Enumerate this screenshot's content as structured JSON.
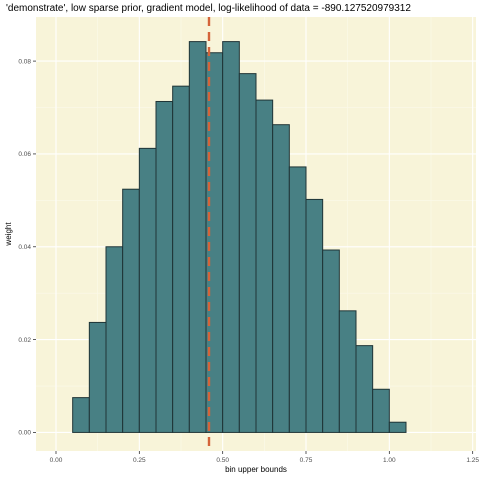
{
  "chart_data": {
    "type": "bar",
    "title": "'demonstrate', low sparse prior, gradient model, log-likelihood of data = -890.127520979312",
    "xlabel": "bin upper bounds",
    "ylabel": "weight",
    "xlim": [
      -0.06,
      1.26
    ],
    "ylim": [
      -0.004,
      0.0895
    ],
    "x_ticks": [
      0.0,
      0.25,
      0.5,
      0.75,
      1.0,
      1.25
    ],
    "x_tick_labels": [
      "0.00",
      "0.25",
      "0.50",
      "0.75",
      "1.00",
      "1.25"
    ],
    "y_ticks": [
      0.0,
      0.02,
      0.04,
      0.06,
      0.08
    ],
    "y_tick_labels": [
      "0.00",
      "0.02",
      "0.04",
      "0.06",
      "0.08"
    ],
    "bin_width": 0.05,
    "bin_upper_bounds": [
      0.075,
      0.125,
      0.175,
      0.225,
      0.275,
      0.325,
      0.375,
      0.425,
      0.475,
      0.525,
      0.575,
      0.625,
      0.675,
      0.725,
      0.775,
      0.825,
      0.875,
      0.925,
      0.975,
      1.025
    ],
    "values": [
      0.0075,
      0.0237,
      0.04,
      0.0524,
      0.0612,
      0.0713,
      0.0746,
      0.0842,
      0.0818,
      0.0842,
      0.0773,
      0.0716,
      0.0663,
      0.0572,
      0.0502,
      0.0393,
      0.0262,
      0.0187,
      0.0093,
      0.0022
    ],
    "vline": {
      "x": 0.459,
      "style": "dashed",
      "color": "#d4643a"
    },
    "grid": true,
    "legend": "none",
    "colors": {
      "bar_fill": "#488084",
      "bar_stroke": "#1f3436",
      "panel_background": "#f8f4d9",
      "grid_major": "#ffffff",
      "grid_minor": "#fbf9ea"
    }
  }
}
